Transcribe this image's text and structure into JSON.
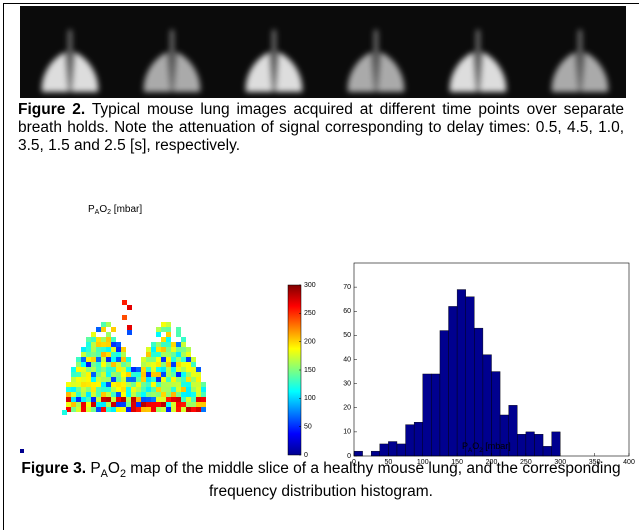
{
  "figure2": {
    "label": "Figure 2.",
    "text": "Typical mouse lung images acquired at different time points over separate breath holds. Note the attenuation of signal corresponding to delay times: 0.5, 4.5, 1.0, 3.5, 1.5 and 2.5 [s], respectively."
  },
  "figure3": {
    "label": "Figure 3.",
    "caption_parts": [
      "P",
      "A",
      "O",
      "2",
      " map of the middle slice of a healthy mouse lung, and the corresponding frequency distribution histogram."
    ],
    "map_title_parts": [
      "P",
      "A",
      "O",
      "2",
      " [mbar]"
    ],
    "colorbar": {
      "lim": [
        0,
        300
      ],
      "ticks": [
        0,
        50,
        100,
        150,
        200,
        250,
        300
      ]
    }
  },
  "chart_data": {
    "type": "histogram",
    "bins": [
      0,
      12.5,
      25,
      37.5,
      50,
      62.5,
      75,
      87.5,
      100,
      112.5,
      125,
      137.5,
      150,
      162.5,
      175,
      187.5,
      200,
      212.5,
      225,
      237.5,
      250,
      262.5,
      275,
      287.5,
      300
    ],
    "values": [
      2,
      0,
      2,
      5,
      6,
      5,
      13,
      14,
      34,
      34,
      52,
      62,
      69,
      66,
      53,
      42,
      35,
      17,
      21,
      9,
      10,
      9,
      4,
      10
    ],
    "color": "#00008f",
    "xlabel_parts": [
      "P",
      "A",
      "O",
      "2",
      " [mbar]"
    ],
    "xlim": [
      0,
      400
    ],
    "xticks": [
      0,
      50,
      100,
      150,
      200,
      250,
      300,
      350,
      400
    ],
    "ylim": [
      0,
      80
    ],
    "yticks": [
      0,
      10,
      20,
      30,
      40,
      50,
      60,
      70
    ]
  }
}
